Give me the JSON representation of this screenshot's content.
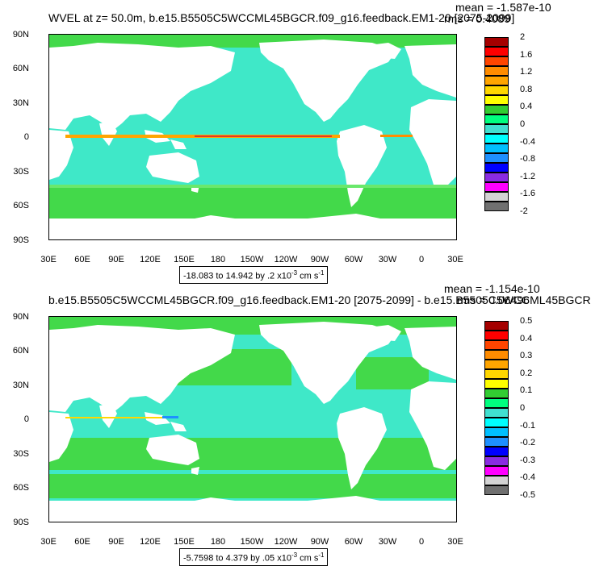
{
  "panels": [
    {
      "title": "WVEL at z=  50.0m, b.e15.B5505C5WCCML45BGCR.f09_g16.feedback.EM1-20 [2075-2099]",
      "mean_text": "mean = -1.587e-10",
      "rms_text": "rms = 0.4089",
      "range_text": "-18.083 to 14.942 by .2 x10",
      "range_exp": "-3",
      "range_unit": " cm s",
      "range_unit_exp": "-1",
      "colorbar_labels": [
        "2",
        "1.6",
        "1.2",
        "0.8",
        "0.4",
        "0",
        "-0.4",
        "-0.8",
        "-1.2",
        "-1.6",
        "-2"
      ],
      "colorbar_colors": [
        "#a50000",
        "#ff0000",
        "#ff4500",
        "#ff8c00",
        "#ffa500",
        "#ffd700",
        "#ffff00",
        "#32cd32",
        "#00ff7f",
        "#40e0d0",
        "#00ffff",
        "#00bfff",
        "#1e90ff",
        "#0000ff",
        "#8a2be2",
        "#ff00ff",
        "#d3d3d3",
        "#707070"
      ]
    },
    {
      "title": "b.e15.B5505C5WCCML45BGCR.f09_g16.feedback.EM1-20 [2075-2099] - b.e15.B5505C5WCCML45BGCR",
      "mean_text": "mean = -1.154e-10",
      "rms_text": "rms = 0.06496",
      "range_text": "-5.7598 to 4.379 by .05 x10",
      "range_exp": "-3",
      "range_unit": " cm s",
      "range_unit_exp": "-1",
      "colorbar_labels": [
        "0.5",
        "0.4",
        "0.3",
        "0.2",
        "0.1",
        "0",
        "-0.1",
        "-0.2",
        "-0.3",
        "-0.4",
        "-0.5"
      ],
      "colorbar_colors": [
        "#a50000",
        "#ff0000",
        "#ff4500",
        "#ff8c00",
        "#ffa500",
        "#ffd700",
        "#ffff00",
        "#32cd32",
        "#00ff7f",
        "#40e0d0",
        "#00ffff",
        "#00bfff",
        "#1e90ff",
        "#0000ff",
        "#8a2be2",
        "#ff00ff",
        "#d3d3d3",
        "#707070"
      ]
    }
  ],
  "lat_labels": [
    "90N",
    "60N",
    "30N",
    "0",
    "30S",
    "60S",
    "90S"
  ],
  "lon_labels": [
    "30E",
    "60E",
    "90E",
    "120E",
    "150E",
    "180",
    "150W",
    "120W",
    "90W",
    "60W",
    "30W",
    "0",
    "30E"
  ],
  "colors": {
    "ocean_main": "#3fe8c8",
    "ocean_green": "#43d94a",
    "ocean_lime": "#6ae86b",
    "equator_warm": "#e0392a",
    "land": "#ffffff"
  }
}
